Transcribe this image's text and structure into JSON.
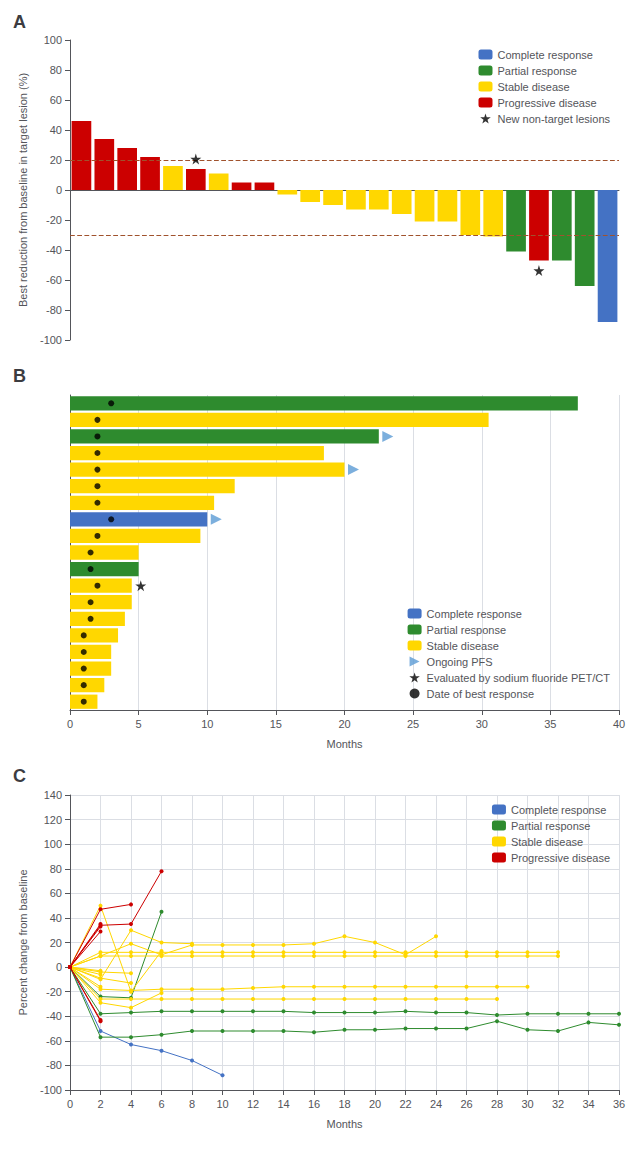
{
  "chart_data": [
    {
      "type": "bar",
      "title": "A",
      "ylabel": "Best reduction from baseline in target lesion (%)",
      "categories": [
        null,
        null,
        null,
        null,
        null,
        null,
        null,
        null,
        null,
        null,
        null,
        null,
        null,
        null,
        null,
        null,
        null,
        null,
        null,
        null,
        null,
        null,
        null,
        null
      ],
      "series": [
        {
          "name": "Complete response",
          "color": "#4472C4",
          "values": [
            null,
            null,
            null,
            null,
            null,
            null,
            null,
            null,
            null,
            null,
            null,
            null,
            null,
            null,
            null,
            null,
            null,
            null,
            null,
            null,
            null,
            null,
            null,
            -88
          ]
        },
        {
          "name": "Partial response",
          "color": "#2E8B2E",
          "values": [
            null,
            null,
            null,
            null,
            null,
            null,
            null,
            null,
            null,
            null,
            null,
            null,
            null,
            null,
            null,
            null,
            null,
            null,
            null,
            -41,
            null,
            -47,
            -64,
            null
          ]
        },
        {
          "name": "Stable disease",
          "color": "#FFD700",
          "values": [
            null,
            null,
            null,
            null,
            16,
            null,
            11,
            null,
            null,
            -3,
            -8,
            -10,
            -13,
            -13,
            -16,
            -21,
            -21,
            -30,
            -31,
            null,
            null,
            null,
            null,
            null
          ]
        },
        {
          "name": "Progressive disease",
          "color": "#CC0000",
          "values": [
            46,
            34,
            28,
            22,
            null,
            14,
            null,
            5,
            5,
            null,
            null,
            null,
            null,
            null,
            null,
            null,
            null,
            null,
            null,
            null,
            -47,
            null,
            null,
            null
          ]
        },
        {
          "name": "New non-target lesions",
          "type": "scatter",
          "marker": "star",
          "color": "#000000",
          "values": [
            null,
            null,
            null,
            null,
            null,
            14,
            null,
            null,
            null,
            null,
            null,
            null,
            null,
            null,
            null,
            null,
            null,
            null,
            null,
            null,
            -47,
            null,
            null,
            null
          ]
        }
      ],
      "hlines": [
        {
          "y": 20,
          "color": "#A0522D",
          "line_style": "dashed"
        },
        {
          "y": -30,
          "color": "#A0522D",
          "line_style": "dashed"
        }
      ],
      "ylim": [
        -100,
        100
      ],
      "yticks": [
        -100,
        -80,
        -60,
        -40,
        -20,
        0,
        20,
        40,
        60,
        80,
        100
      ],
      "grid": false,
      "legend": "upper right",
      "tick_labels": "y"
    },
    {
      "type": "bar",
      "title": "B",
      "orientation": "horizontal",
      "xlabel": "Months",
      "categories": [
        null,
        null,
        null,
        null,
        null,
        null,
        null,
        null,
        null,
        null,
        null,
        null,
        null,
        null,
        null,
        null,
        null,
        null,
        null
      ],
      "series": [
        {
          "name": "Complete response",
          "color": "#4472C4",
          "values": [
            null,
            null,
            null,
            null,
            null,
            null,
            null,
            10.0,
            null,
            null,
            null,
            null,
            null,
            null,
            null,
            null,
            null,
            null,
            null
          ]
        },
        {
          "name": "Partial response",
          "color": "#2E8B2E",
          "values": [
            37.0,
            null,
            22.5,
            null,
            null,
            null,
            null,
            null,
            null,
            null,
            5.0,
            null,
            null,
            null,
            null,
            null,
            null,
            null,
            null
          ]
        },
        {
          "name": "Stable disease",
          "color": "#FFD700",
          "values": [
            null,
            30.5,
            null,
            18.5,
            20.0,
            12.0,
            10.5,
            null,
            9.5,
            5.0,
            null,
            4.5,
            4.5,
            4.0,
            3.5,
            3.0,
            3.0,
            2.5,
            2.0
          ]
        },
        {
          "name": "Ongoing PFS",
          "type": "scatter",
          "marker": "arrow",
          "color": "#5B9BD5",
          "values": [
            null,
            null,
            22.5,
            null,
            20.0,
            null,
            null,
            10.0,
            null,
            null,
            null,
            null,
            null,
            null,
            null,
            null,
            null,
            null,
            null
          ]
        },
        {
          "name": "Evaluated by sodium fluoride PET/CT",
          "type": "scatter",
          "marker": "star",
          "color": "#000000",
          "values": [
            null,
            null,
            null,
            null,
            null,
            null,
            null,
            null,
            null,
            null,
            null,
            4.5,
            null,
            null,
            null,
            null,
            null,
            null,
            null
          ]
        },
        {
          "name": "Date of best response",
          "type": "scatter",
          "marker": "circle",
          "color": "#000000",
          "values": [
            3.0,
            2.0,
            2.0,
            2.0,
            2.0,
            2.0,
            2.0,
            3.0,
            2.0,
            1.5,
            1.5,
            2.0,
            1.5,
            1.5,
            1.0,
            1.0,
            1.0,
            1.0,
            1.0
          ]
        }
      ],
      "xlim": [
        0,
        40
      ],
      "xticks": [
        0,
        5,
        10,
        15,
        20,
        25,
        30,
        35,
        40
      ],
      "grid": true,
      "legend": "lower right",
      "tick_labels": "x"
    },
    {
      "type": "line",
      "title": "C",
      "marker": "circle",
      "xlabel": "Months",
      "ylabel": "Percent change from baseline",
      "series": [
        {
          "name": "Complete response",
          "color": "#4472C4",
          "x": [
            0,
            2,
            4,
            6,
            8,
            10
          ],
          "values": [
            0,
            -52,
            -63,
            -68,
            -76,
            -88
          ]
        },
        {
          "name": "Partial response",
          "color": "#2E8B2E",
          "x": [
            0,
            2,
            4,
            6,
            8,
            10,
            12,
            14,
            16,
            18,
            20,
            22,
            24,
            26,
            28,
            30,
            32,
            34,
            36
          ],
          "values": [
            0,
            -57,
            -57,
            -55,
            -52,
            -52,
            -52,
            -52,
            -53,
            -51,
            -51,
            -50,
            -50,
            -50,
            -44,
            -51,
            -52,
            -45,
            -47
          ]
        },
        {
          "name": "Partial response",
          "color": "#2E8B2E",
          "x": [
            0,
            2,
            4,
            6,
            8,
            10,
            12,
            14,
            16,
            18,
            20,
            22,
            24,
            26,
            28,
            30,
            32,
            34,
            36
          ],
          "values": [
            0,
            -38,
            -37,
            -36,
            -36,
            -36,
            -36,
            -36,
            -37,
            -37,
            -37,
            -36,
            -37,
            -37,
            -39,
            -38,
            -38,
            -38,
            -38
          ]
        },
        {
          "name": "Partial response",
          "color": "#2E8B2E",
          "x": [
            0,
            2,
            4,
            6
          ],
          "values": [
            0,
            -24,
            -25,
            45
          ]
        },
        {
          "name": "Stable disease",
          "color": "#FFD700",
          "x": [
            0,
            2,
            4,
            6,
            8,
            10,
            12,
            14,
            16,
            18,
            20,
            22,
            24,
            26,
            28,
            30
          ],
          "values": [
            0,
            -18,
            -19,
            -18,
            -18,
            -18,
            -17,
            -16,
            -16,
            -16,
            -16,
            -16,
            -16,
            -16,
            -16,
            -16
          ]
        },
        {
          "name": "Stable disease",
          "color": "#FFD700",
          "x": [
            0,
            2,
            4,
            6,
            8,
            10,
            12,
            14,
            16,
            18,
            20,
            22,
            24,
            26,
            28
          ],
          "values": [
            0,
            -26,
            -26,
            -26,
            -26,
            -26,
            -26,
            -26,
            -26,
            -26,
            -26,
            -26,
            -26,
            -26,
            -26
          ]
        },
        {
          "name": "Stable disease",
          "color": "#FFD700",
          "x": [
            0,
            2,
            4,
            6,
            8,
            10,
            12,
            14,
            16,
            18,
            20,
            22,
            24,
            26,
            28,
            30,
            32
          ],
          "values": [
            0,
            9,
            9,
            9,
            9,
            9,
            9,
            9,
            9,
            9,
            9,
            9,
            9,
            9,
            9,
            9,
            9
          ]
        },
        {
          "name": "Stable disease",
          "color": "#FFD700",
          "x": [
            0,
            2,
            4,
            6,
            8,
            10,
            12,
            14,
            16,
            18,
            20,
            22,
            24,
            26,
            28,
            30,
            32
          ],
          "values": [
            0,
            12,
            12,
            12,
            12,
            12,
            12,
            12,
            12,
            12,
            12,
            12,
            12,
            12,
            12,
            12,
            12
          ]
        },
        {
          "name": "Stable disease",
          "color": "#FFD700",
          "x": [
            0,
            2,
            4,
            6,
            8,
            10,
            12,
            14,
            16,
            18,
            20,
            22,
            24
          ],
          "values": [
            0,
            9,
            19,
            10,
            18,
            18,
            18,
            18,
            19,
            25,
            20,
            10,
            25
          ]
        },
        {
          "name": "Stable disease",
          "color": "#FFD700",
          "x": [
            0,
            2,
            4,
            6,
            8
          ],
          "values": [
            0,
            -10,
            30,
            20,
            19
          ]
        },
        {
          "name": "Stable disease",
          "color": "#FFD700",
          "x": [
            0,
            2,
            4,
            6
          ],
          "values": [
            0,
            50,
            -20,
            13
          ]
        },
        {
          "name": "Stable disease",
          "color": "#FFD700",
          "x": [
            0,
            2,
            4,
            6
          ],
          "values": [
            0,
            -29,
            -33,
            -21
          ]
        },
        {
          "name": "Stable disease",
          "color": "#FFD700",
          "x": [
            0,
            2,
            4
          ],
          "values": [
            0,
            -9,
            -13
          ]
        },
        {
          "name": "Stable disease",
          "color": "#FFD700",
          "x": [
            0,
            2,
            4
          ],
          "values": [
            0,
            -4,
            -5
          ]
        },
        {
          "name": "Stable disease",
          "color": "#FFD700",
          "x": [
            0,
            2
          ],
          "values": [
            0,
            -3
          ]
        },
        {
          "name": "Stable disease",
          "color": "#FFD700",
          "x": [
            0,
            2
          ],
          "values": [
            0,
            -16
          ]
        },
        {
          "name": "Stable disease",
          "color": "#FFD700",
          "x": [
            0,
            2
          ],
          "values": [
            0,
            -6
          ]
        },
        {
          "name": "Progressive disease",
          "color": "#CC0000",
          "x": [
            0,
            2,
            4,
            6
          ],
          "values": [
            0,
            34,
            35,
            78
          ]
        },
        {
          "name": "Progressive disease",
          "color": "#CC0000",
          "x": [
            0,
            2,
            4
          ],
          "values": [
            0,
            47,
            51
          ]
        },
        {
          "name": "Progressive disease",
          "color": "#CC0000",
          "x": [
            0,
            2
          ],
          "values": [
            0,
            33
          ]
        },
        {
          "name": "Progressive disease",
          "color": "#CC0000",
          "x": [
            0,
            2
          ],
          "values": [
            0,
            35
          ]
        },
        {
          "name": "Progressive disease",
          "color": "#CC0000",
          "x": [
            0,
            2
          ],
          "values": [
            0,
            29
          ]
        },
        {
          "name": "Progressive disease",
          "color": "#CC0000",
          "x": [
            0,
            2
          ],
          "values": [
            0,
            -43
          ]
        },
        {
          "name": "Progressive disease",
          "color": "#CC0000",
          "x": [
            0,
            2
          ],
          "values": [
            0,
            -44
          ]
        }
      ],
      "xlim": [
        0,
        36
      ],
      "ylim": [
        -100,
        140
      ],
      "xticks": [
        0,
        2,
        4,
        6,
        8,
        10,
        12,
        14,
        16,
        18,
        20,
        22,
        24,
        26,
        28,
        30,
        32,
        34,
        36
      ],
      "yticks": [
        -100,
        -80,
        -60,
        -40,
        -20,
        0,
        20,
        40,
        60,
        80,
        100,
        120,
        140
      ],
      "grid": true,
      "legend": "upper right"
    }
  ]
}
